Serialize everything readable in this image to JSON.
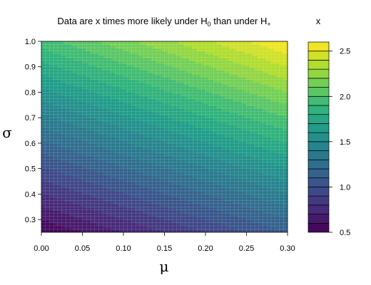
{
  "chart_data": {
    "type": "heatmap",
    "title": {
      "prefix": "Data are x times more likely under H",
      "sub1": "0",
      "middle": " than under H",
      "sub2": "+"
    },
    "xlabel": "μ",
    "ylabel": "σ",
    "xlim": [
      0.0,
      0.3
    ],
    "ylim": [
      0.25,
      1.0
    ],
    "xticks": [
      "0.00",
      "0.05",
      "0.10",
      "0.15",
      "0.20",
      "0.25",
      "0.30"
    ],
    "yticks": [
      "0.3",
      "0.4",
      "0.5",
      "0.6",
      "0.7",
      "0.8",
      "0.9",
      "1.0"
    ],
    "colorbar": {
      "title": "x",
      "range": [
        0.5,
        2.6
      ],
      "ticks": [
        "0.5",
        "1.0",
        "1.5",
        "2.0",
        "2.5"
      ],
      "levels": 21,
      "colormap": "viridis"
    },
    "z_corners": {
      "mu0_sigma0_25": 0.5,
      "mu0_3_sigma0_25": 1.1,
      "mu0_sigma1": 1.95,
      "mu0_3_sigma1": 2.6
    },
    "grid": true,
    "legend_position": "right"
  }
}
